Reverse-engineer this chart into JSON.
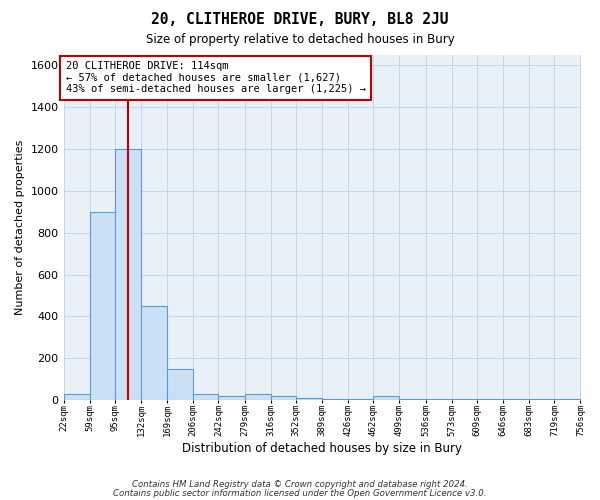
{
  "title": "20, CLITHEROE DRIVE, BURY, BL8 2JU",
  "subtitle": "Size of property relative to detached houses in Bury",
  "xlabel": "Distribution of detached houses by size in Bury",
  "ylabel": "Number of detached properties",
  "annotation_line1": "20 CLITHEROE DRIVE: 114sqm",
  "annotation_line2": "← 57% of detached houses are smaller (1,627)",
  "annotation_line3": "43% of semi-detached houses are larger (1,225) →",
  "footnote1": "Contains HM Land Registry data © Crown copyright and database right 2024.",
  "footnote2": "Contains public sector information licensed under the Open Government Licence v3.0.",
  "bar_edges": [
    22,
    59,
    95,
    132,
    169,
    206,
    242,
    279,
    316,
    352,
    389,
    426,
    462,
    499,
    536,
    573,
    609,
    646,
    683,
    719,
    756
  ],
  "bar_heights": [
    30,
    900,
    1200,
    450,
    150,
    30,
    20,
    30,
    20,
    10,
    5,
    5,
    20,
    5,
    5,
    5,
    5,
    5,
    5,
    5
  ],
  "property_size": 114,
  "bar_fill_color": "#cce0f5",
  "bar_edge_color": "#5b9bd5",
  "vline_color": "#c00000",
  "bg_color": "#e8f0f8",
  "annotation_box_color": "#c00000",
  "ylim": [
    0,
    1650
  ],
  "yticks": [
    0,
    200,
    400,
    600,
    800,
    1000,
    1200,
    1400,
    1600
  ]
}
